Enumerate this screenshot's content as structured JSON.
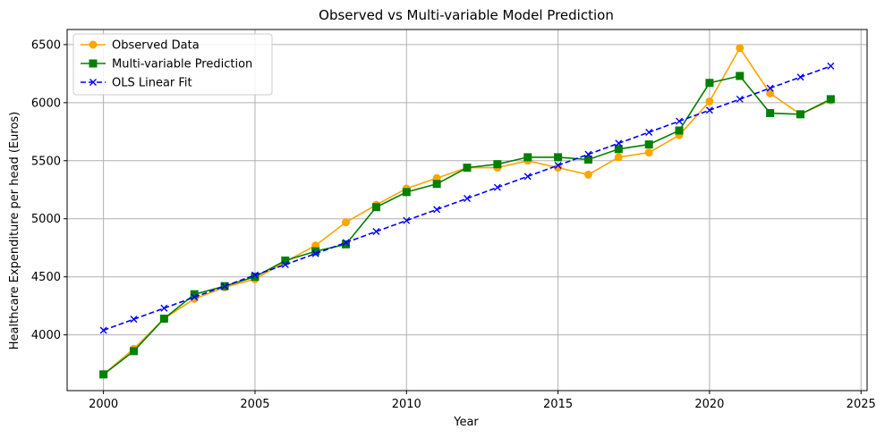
{
  "chart_data": {
    "type": "line",
    "title": "Observed vs Multi-variable Model Prediction",
    "xlabel": "Year",
    "ylabel": "Healthcare Expenditure per head (Euros)",
    "xlim": [
      1998.8,
      2025.2
    ],
    "ylim": [
      3520,
      6630
    ],
    "xticks": [
      2000,
      2005,
      2010,
      2015,
      2020,
      2025
    ],
    "yticks": [
      4000,
      4500,
      5000,
      5500,
      6000,
      6500
    ],
    "grid": true,
    "legend_position": "top-left",
    "x": [
      2000,
      2001,
      2002,
      2003,
      2004,
      2005,
      2006,
      2007,
      2008,
      2009,
      2010,
      2011,
      2012,
      2013,
      2014,
      2015,
      2016,
      2017,
      2018,
      2019,
      2020,
      2021,
      2022,
      2023,
      2024
    ],
    "series": [
      {
        "name": "Observed Data",
        "color": "#ffa500",
        "marker": "circle",
        "linestyle": "solid",
        "values": [
          3660,
          3880,
          4140,
          4310,
          4410,
          4480,
          4630,
          4770,
          4970,
          5120,
          5260,
          5350,
          5440,
          5440,
          5500,
          5440,
          5380,
          5530,
          5570,
          5720,
          6010,
          6470,
          6080,
          5900,
          6020
        ]
      },
      {
        "name": "Multi-variable Prediction",
        "color": "#008000",
        "marker": "square",
        "linestyle": "solid",
        "values": [
          3660,
          3860,
          4140,
          4350,
          4420,
          4500,
          4640,
          4720,
          4780,
          5100,
          5230,
          5300,
          5440,
          5470,
          5530,
          5530,
          5510,
          5600,
          5640,
          5760,
          6170,
          6230,
          5910,
          5900,
          6030
        ]
      },
      {
        "name": "OLS Linear Fit",
        "color": "#0000ff",
        "marker": "x",
        "linestyle": "dashed",
        "values": [
          4040,
          4135,
          4230,
          4325,
          4420,
          4515,
          4605,
          4700,
          4795,
          4890,
          4985,
          5080,
          5175,
          5270,
          5365,
          5460,
          5555,
          5650,
          5745,
          5840,
          5935,
          6030,
          6125,
          6220,
          6315
        ]
      }
    ]
  }
}
